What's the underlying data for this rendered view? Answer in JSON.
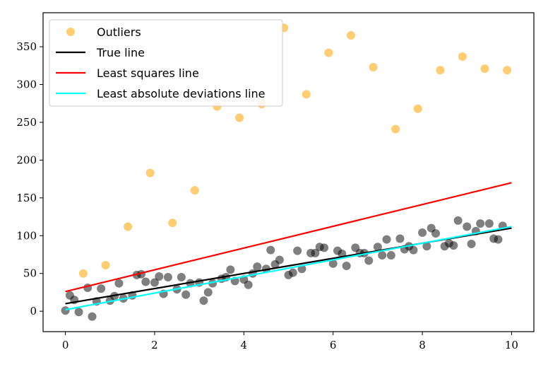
{
  "chart_data": {
    "type": "scatter",
    "xlim": [
      -0.5,
      10.5
    ],
    "ylim": [
      -27,
      395
    ],
    "x_ticks": [
      0,
      2,
      4,
      6,
      8,
      10
    ],
    "y_ticks": [
      0,
      50,
      100,
      150,
      200,
      250,
      300,
      350
    ],
    "grid": false,
    "legend_position": "top-left",
    "colors": {
      "inliers": "#000000",
      "outliers": "#FFA500",
      "true_line": "#000000",
      "least_squares": "#FF0000",
      "lad": "#00FFFF"
    },
    "series": [
      {
        "name": "Outliers",
        "kind": "scatter",
        "points": [
          [
            0.4,
            50
          ],
          [
            0.9,
            61
          ],
          [
            1.4,
            112
          ],
          [
            1.9,
            183
          ],
          [
            2.4,
            117
          ],
          [
            2.9,
            160
          ],
          [
            3.4,
            271
          ],
          [
            3.9,
            256
          ],
          [
            4.4,
            274
          ],
          [
            4.9,
            375
          ],
          [
            5.4,
            287
          ],
          [
            5.9,
            342
          ],
          [
            6.4,
            365
          ],
          [
            6.9,
            323
          ],
          [
            7.4,
            241
          ],
          [
            7.9,
            268
          ],
          [
            8.4,
            319
          ],
          [
            8.9,
            337
          ],
          [
            9.4,
            321
          ],
          [
            9.9,
            319
          ]
        ]
      },
      {
        "kind": "scatter",
        "points": [
          [
            0.0,
            1
          ],
          [
            0.1,
            21
          ],
          [
            0.2,
            15
          ],
          [
            0.3,
            -1
          ],
          [
            0.5,
            31
          ],
          [
            0.6,
            -7
          ],
          [
            0.7,
            13
          ],
          [
            0.8,
            30
          ],
          [
            1.0,
            14
          ],
          [
            1.1,
            20
          ],
          [
            1.2,
            37
          ],
          [
            1.3,
            17
          ],
          [
            1.5,
            21
          ],
          [
            1.6,
            48
          ],
          [
            1.7,
            49
          ],
          [
            1.8,
            39
          ],
          [
            2.0,
            38
          ],
          [
            2.1,
            46
          ],
          [
            2.2,
            23
          ],
          [
            2.3,
            45
          ],
          [
            2.5,
            29
          ],
          [
            2.6,
            45
          ],
          [
            2.7,
            22
          ],
          [
            2.8,
            37
          ],
          [
            3.0,
            38
          ],
          [
            3.1,
            14
          ],
          [
            3.2,
            25
          ],
          [
            3.3,
            37
          ],
          [
            3.5,
            43
          ],
          [
            3.6,
            45
          ],
          [
            3.7,
            55
          ],
          [
            3.8,
            40
          ],
          [
            4.0,
            42
          ],
          [
            4.1,
            35
          ],
          [
            4.2,
            50
          ],
          [
            4.3,
            59
          ],
          [
            4.5,
            56
          ],
          [
            4.6,
            81
          ],
          [
            4.7,
            62
          ],
          [
            4.8,
            68
          ],
          [
            5.0,
            48
          ],
          [
            5.1,
            51
          ],
          [
            5.2,
            80
          ],
          [
            5.3,
            56
          ],
          [
            5.5,
            77
          ],
          [
            5.6,
            77
          ],
          [
            5.7,
            85
          ],
          [
            5.8,
            84
          ],
          [
            6.0,
            63
          ],
          [
            6.1,
            80
          ],
          [
            6.2,
            76
          ],
          [
            6.3,
            60
          ],
          [
            6.5,
            84
          ],
          [
            6.6,
            77
          ],
          [
            6.7,
            77
          ],
          [
            6.8,
            67
          ],
          [
            7.0,
            85
          ],
          [
            7.1,
            74
          ],
          [
            7.2,
            95
          ],
          [
            7.3,
            74
          ],
          [
            7.5,
            96
          ],
          [
            7.6,
            82
          ],
          [
            7.7,
            86
          ],
          [
            7.8,
            81
          ],
          [
            8.0,
            104
          ],
          [
            8.1,
            86
          ],
          [
            8.2,
            110
          ],
          [
            8.3,
            103
          ],
          [
            8.5,
            86
          ],
          [
            8.6,
            90
          ],
          [
            8.7,
            87
          ],
          [
            8.8,
            120
          ],
          [
            9.0,
            112
          ],
          [
            9.1,
            89
          ],
          [
            9.2,
            106
          ],
          [
            9.3,
            116
          ],
          [
            9.5,
            116
          ],
          [
            9.6,
            96
          ],
          [
            9.7,
            95
          ],
          [
            9.8,
            113
          ]
        ]
      },
      {
        "name": "True line",
        "kind": "line",
        "points": [
          [
            0,
            10
          ],
          [
            10,
            110
          ]
        ]
      },
      {
        "name": "Least squares line",
        "kind": "line",
        "points": [
          [
            0,
            26
          ],
          [
            10,
            170
          ]
        ]
      },
      {
        "name": "Least absolute deviations line",
        "kind": "line",
        "points": [
          [
            0,
            2
          ],
          [
            10,
            112
          ]
        ]
      }
    ]
  }
}
